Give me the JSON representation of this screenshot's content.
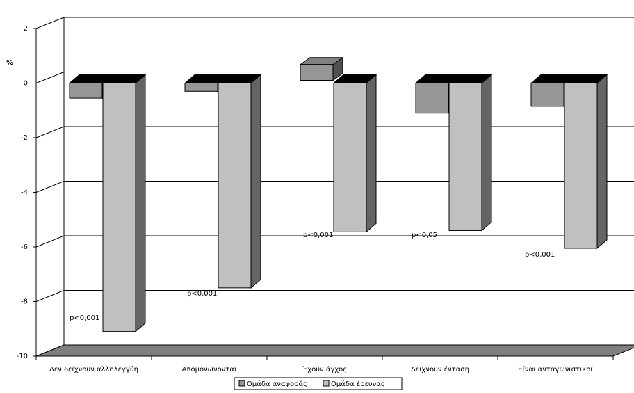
{
  "chart_data": {
    "type": "bar",
    "title": "",
    "ylabel": "%",
    "xlabel": "",
    "ylim": [
      -10,
      2
    ],
    "yticks": [
      2,
      0,
      -2,
      -4,
      -6,
      -8,
      -10
    ],
    "ytick_labels": [
      "2",
      "0",
      "-2",
      "-4",
      "-6",
      "-8",
      "-10"
    ],
    "grid": true,
    "three_d": true,
    "legend_position": "bottom",
    "categories": [
      "Δεν δείχνουν αλληλεγγύη",
      "Απομονώνονται",
      "Έχουν άγχος",
      "Δείχνουν ένταση",
      "Είναι ανταγωνιστικοί"
    ],
    "series": [
      {
        "name": "Ομάδα αναφοράς",
        "values": [
          -0.55,
          -0.3,
          0.3,
          -1.1,
          -0.85
        ],
        "color": "#969696"
      },
      {
        "name": "Ομάδα έρευνας",
        "values": [
          -9.1,
          -7.5,
          -5.45,
          -5.4,
          -6.05
        ],
        "color": "#c0c0c0"
      }
    ],
    "annotations": [
      "p<0,001",
      "p<0,001",
      "p<0,001",
      "p<0,05",
      "p<0,001"
    ]
  }
}
